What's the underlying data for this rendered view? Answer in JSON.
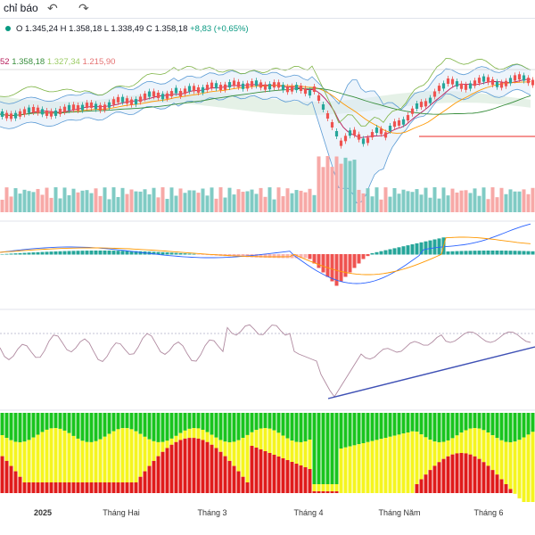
{
  "toolbar": {
    "indicators_label": "chỉ báo",
    "undo_icon": "undo-icon",
    "redo_icon": "redo-icon"
  },
  "ohlc": {
    "open": "O 1.345,24",
    "high": "H 1.358,18",
    "low": "L 1.338,49",
    "close": "C 1.358,18",
    "change": "+8,83 (+0,65%)"
  },
  "ma_values": {
    "v1": "52",
    "v2": "1.358,18",
    "v3": "1.327,34",
    "v4": "1.215,90"
  },
  "colors": {
    "up": "#26a69a",
    "down": "#ef5350",
    "ma_pink": "#b71c5a",
    "ma_green": "#388e3c",
    "bollinger": "#5b9bd5",
    "cloud": "#cfe6d4",
    "macd": "#ff9800",
    "signal": "#2962ff",
    "rsi": "#7e57c2",
    "trend": "#3f51b5",
    "heat_green": "#19c41e",
    "heat_yellow": "#f5f51f",
    "heat_red": "#e01b1b"
  },
  "x_axis": {
    "labels": [
      "2025",
      "Tháng Hai",
      "Tháng 3",
      "Tháng 4",
      "Tháng Năm",
      "Tháng 6"
    ]
  },
  "chart_data": {
    "type": "candlestick",
    "x": [
      "2025",
      "Tháng Hai",
      "Tháng 3",
      "Tháng 4",
      "Tháng Năm",
      "Tháng 6"
    ],
    "close_last": 1358.18,
    "open_last": 1345.24,
    "high_last": 1358.18,
    "low_last": 1338.49,
    "change": 8.83,
    "change_pct": 0.65,
    "panes": [
      "price",
      "volume",
      "macd",
      "rsi",
      "heatmap"
    ],
    "rsi_trendline": true
  }
}
